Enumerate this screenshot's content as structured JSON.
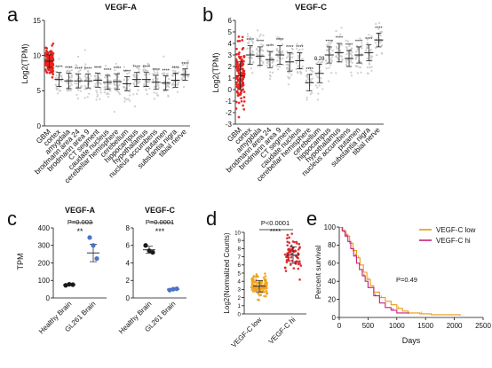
{
  "colors": {
    "gbm": "#e8221f",
    "tissue_dots": "#c9c9c9",
    "axis": "#111111",
    "healthy_dot": "#1a1a1a",
    "gl261_dot": "#4a74c4",
    "vegfc_low": "#f0a21c",
    "vegfc_hi": "#d81f26",
    "km_low": "#e89a14",
    "km_hi": "#c8207a"
  },
  "chart_data": [
    {
      "panel": "a",
      "type": "scatter",
      "title": "VEGF-A",
      "ylabel": "Log2(TPM)",
      "ylim": [
        0,
        15
      ],
      "yticks": [
        0,
        5,
        10,
        15
      ],
      "categories": [
        "GBM",
        "cortex",
        "amygdala",
        "brodmann area 24",
        "brodmann area 9",
        "CT segment",
        "caudate nucleus",
        "cerebellar hemisphere",
        "cerebellum",
        "hippocampus",
        "hypothalamus",
        "nucleus accumbens",
        "putamen",
        "substantia nigra",
        "tibial nerve"
      ],
      "means": [
        9.2,
        6.6,
        6.4,
        6.4,
        6.4,
        6.5,
        6.2,
        6.3,
        6.0,
        6.6,
        6.6,
        6.2,
        6.1,
        6.5,
        7.3
      ],
      "sd": [
        0.9,
        1.0,
        1.1,
        1.0,
        1.0,
        1.0,
        1.0,
        1.1,
        1.0,
        1.0,
        1.0,
        1.0,
        1.0,
        1.0,
        0.8
      ],
      "annotations": [
        "",
        "****",
        "****",
        "****",
        "****",
        "****",
        "****",
        "****",
        "****",
        "****",
        "****",
        "****",
        "****",
        "****",
        "****"
      ]
    },
    {
      "panel": "b",
      "type": "scatter",
      "title": "VEGF-C",
      "ylabel": "Log2(TPM)",
      "ylim": [
        -3,
        6
      ],
      "yticks": [
        -3,
        -2,
        -1,
        0,
        1,
        2,
        3,
        4,
        5,
        6
      ],
      "categories": [
        "GBM",
        "cortex",
        "amygdala",
        "brodmann area 24",
        "brodmann area 9",
        "CT segment",
        "caudate nucleus",
        "cerebellar hemisphere",
        "cerebellum",
        "hippocampus",
        "hypothalamus",
        "nucleus accumbens",
        "putamen",
        "substantia nigra",
        "tibial nerve"
      ],
      "means": [
        1.2,
        3.0,
        2.9,
        2.6,
        3.0,
        2.4,
        2.5,
        0.6,
        1.4,
        3.0,
        3.2,
        2.7,
        3.0,
        3.2,
        4.3
      ],
      "sd": [
        1.2,
        0.8,
        0.8,
        0.7,
        0.8,
        0.8,
        0.7,
        0.7,
        0.8,
        0.7,
        0.8,
        0.7,
        0.7,
        0.7,
        0.6
      ],
      "annotations": [
        "",
        "****",
        "****",
        "****",
        "****",
        "****",
        "****",
        "****",
        "0.28",
        "****",
        "****",
        "****",
        "****",
        "****",
        "****"
      ]
    },
    {
      "panel": "c",
      "type": "scatter",
      "subcharts": [
        {
          "title": "VEGF-A",
          "ylabel": "TPM",
          "ylim": [
            0,
            400
          ],
          "yticks": [
            0,
            100,
            200,
            300,
            400
          ],
          "categories": [
            "Healthy Brain",
            "GL261 Brain"
          ],
          "points": [
            [
              72,
              78,
              76
            ],
            [
              345,
              300,
              225
            ]
          ],
          "means": [
            75,
            257
          ],
          "sd": [
            3,
            50
          ],
          "pvalue": "P=0.003",
          "stars": "**"
        },
        {
          "title": "VEGF-C",
          "ylabel": "",
          "ylim": [
            0,
            8
          ],
          "yticks": [
            0,
            2,
            4,
            6,
            8
          ],
          "categories": [
            "Healthy Brain",
            "GL261 Brain"
          ],
          "points": [
            [
              6.0,
              5.4,
              5.2
            ],
            [
              0.9,
              1.0,
              1.05
            ]
          ],
          "means": [
            5.5,
            1.0
          ],
          "sd": [
            0.4,
            0.08
          ],
          "pvalue": "P=0.0001",
          "stars": "***"
        }
      ]
    },
    {
      "panel": "d",
      "type": "scatter",
      "ylabel": "Log2(Normalized Counts)",
      "ylim": [
        0,
        10
      ],
      "yticks": [
        0,
        1,
        2,
        3,
        4,
        5,
        6,
        7,
        8,
        9,
        10
      ],
      "categories": [
        "VEGF-C low",
        "VEGF-C hi"
      ],
      "means": [
        3.4,
        7.2
      ],
      "sd": [
        0.7,
        1.0
      ],
      "pvalue": "P<0.0001",
      "stars": "****"
    },
    {
      "panel": "e",
      "type": "line",
      "xlabel": "Days",
      "ylabel": "Percent survival",
      "xlim": [
        0,
        2500
      ],
      "ylim": [
        0,
        100
      ],
      "xticks": [
        0,
        500,
        1000,
        1500,
        2000,
        2500
      ],
      "yticks": [
        0,
        20,
        40,
        60,
        80,
        100
      ],
      "pvalue": "P=0.49",
      "series": [
        {
          "name": "VEGF-C low",
          "x": [
            0,
            60,
            120,
            180,
            240,
            300,
            360,
            420,
            480,
            540,
            600,
            700,
            800,
            900,
            1000,
            1100,
            1200,
            1400,
            1600,
            2100
          ],
          "y": [
            100,
            95,
            90,
            82,
            74,
            66,
            58,
            50,
            42,
            35,
            28,
            22,
            18,
            14,
            10,
            7,
            5,
            4,
            3,
            2
          ]
        },
        {
          "name": "VEGF-C hi",
          "x": [
            0,
            50,
            100,
            150,
            200,
            250,
            300,
            350,
            400,
            450,
            500,
            600,
            700,
            800,
            900,
            1000,
            1200
          ],
          "y": [
            100,
            96,
            90,
            84,
            76,
            68,
            60,
            53,
            46,
            40,
            33,
            24,
            16,
            11,
            8,
            5,
            4
          ]
        }
      ]
    }
  ]
}
